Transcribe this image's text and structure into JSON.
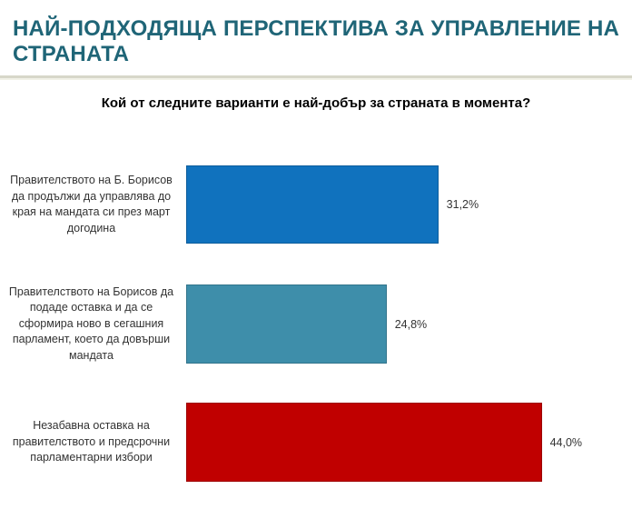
{
  "chart_data": {
    "type": "bar",
    "orientation": "horizontal",
    "title": "НАЙ-ПОДХОДЯЩА ПЕРСПЕКТИВА ЗА УПРАВЛЕНИЕ НА СТРАНАТА",
    "subtitle": "Кой от следните варианти е най-добър за страната в момента?",
    "categories": [
      "Правителството на Б. Борисов да продължи да управлява до края на мандата си през март догодина",
      "Правителството на Борисов да подаде оставка и да се сформира ново в сегашния парламент, което да довърши мандата",
      "Незабавна оставка на правителството и предсрочни парламентарни избори"
    ],
    "values": [
      31.2,
      24.8,
      44.0
    ],
    "value_labels": [
      "31,2%",
      "24,8%",
      "44,0%"
    ],
    "bar_colors": [
      "#1072BE",
      "#3E8EAA",
      "#C00000"
    ],
    "xlim": [
      0,
      52
    ],
    "grid": false,
    "legend": false,
    "value_label_position": "outside-right"
  },
  "colors": {
    "title": "#1F6577",
    "divider": "#D7D7C9",
    "label_text": "#333333"
  }
}
